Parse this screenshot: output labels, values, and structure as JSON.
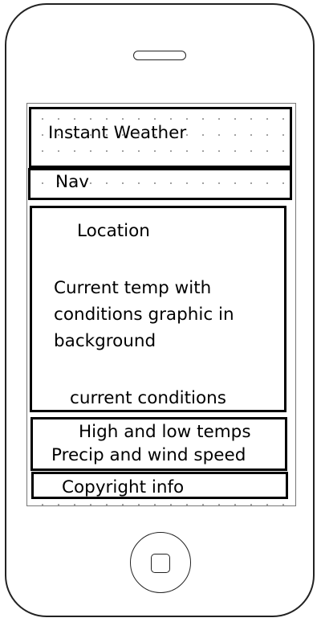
{
  "header": {
    "title": "Instant Weather"
  },
  "nav": {
    "label": "Nav"
  },
  "main": {
    "location": "Location",
    "current_temp": "Current temp with conditions graphic in background",
    "current_conditions": "current conditions"
  },
  "details": {
    "high_low": "High and low temps",
    "precip_wind": "Precip and wind speed"
  },
  "footer": {
    "copyright": "Copyright info"
  }
}
